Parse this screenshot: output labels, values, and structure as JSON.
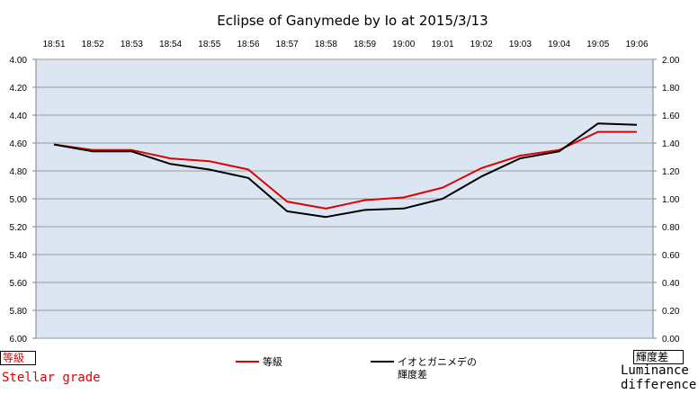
{
  "chart_data": {
    "type": "line",
    "title": "Eclipse of Ganymede by Io at 2015/3/13",
    "categories": [
      "18:51",
      "18:52",
      "18:53",
      "18:54",
      "18:55",
      "18:56",
      "18:57",
      "18:58",
      "18:59",
      "19:00",
      "19:01",
      "19:02",
      "19:03",
      "19:04",
      "19:05",
      "19:06"
    ],
    "left_axis": {
      "label": "等級",
      "range": [
        4.0,
        6.0
      ],
      "inverted": true,
      "ticks": [
        "4.00",
        "4.20",
        "4.40",
        "4.60",
        "4.80",
        "5.00",
        "5.20",
        "5.40",
        "5.60",
        "5.80",
        "6.00"
      ]
    },
    "right_axis": {
      "label": "輝度差",
      "range": [
        0.0,
        2.0
      ],
      "ticks": [
        "2.00",
        "1.80",
        "1.60",
        "1.40",
        "1.20",
        "1.00",
        "0.80",
        "0.60",
        "0.40",
        "0.20",
        "0.00"
      ]
    },
    "series": [
      {
        "name": "等級",
        "axis": "left",
        "color": "#e00000",
        "values": [
          4.61,
          4.65,
          4.65,
          4.71,
          4.73,
          4.79,
          5.02,
          5.07,
          5.01,
          4.99,
          4.92,
          4.78,
          4.69,
          4.65,
          4.52,
          4.52
        ]
      },
      {
        "name": "イオとガニメデの輝度差",
        "name_lines": [
          "イオとガニメデの",
          "輝度差"
        ],
        "axis": "right",
        "color": "#000000",
        "values": [
          1.39,
          1.34,
          1.34,
          1.25,
          1.21,
          1.15,
          0.91,
          0.87,
          0.92,
          0.93,
          1.0,
          1.16,
          1.29,
          1.34,
          1.54,
          1.53
        ]
      }
    ],
    "grid": true,
    "plot_background": "#dce6f2",
    "legend_position": "bottom"
  },
  "annotations": {
    "left_box_label": "等級",
    "left_caption": "Stellar grade",
    "right_box_label": "輝度差",
    "right_caption_lines": [
      "Luminance",
      "difference"
    ]
  }
}
